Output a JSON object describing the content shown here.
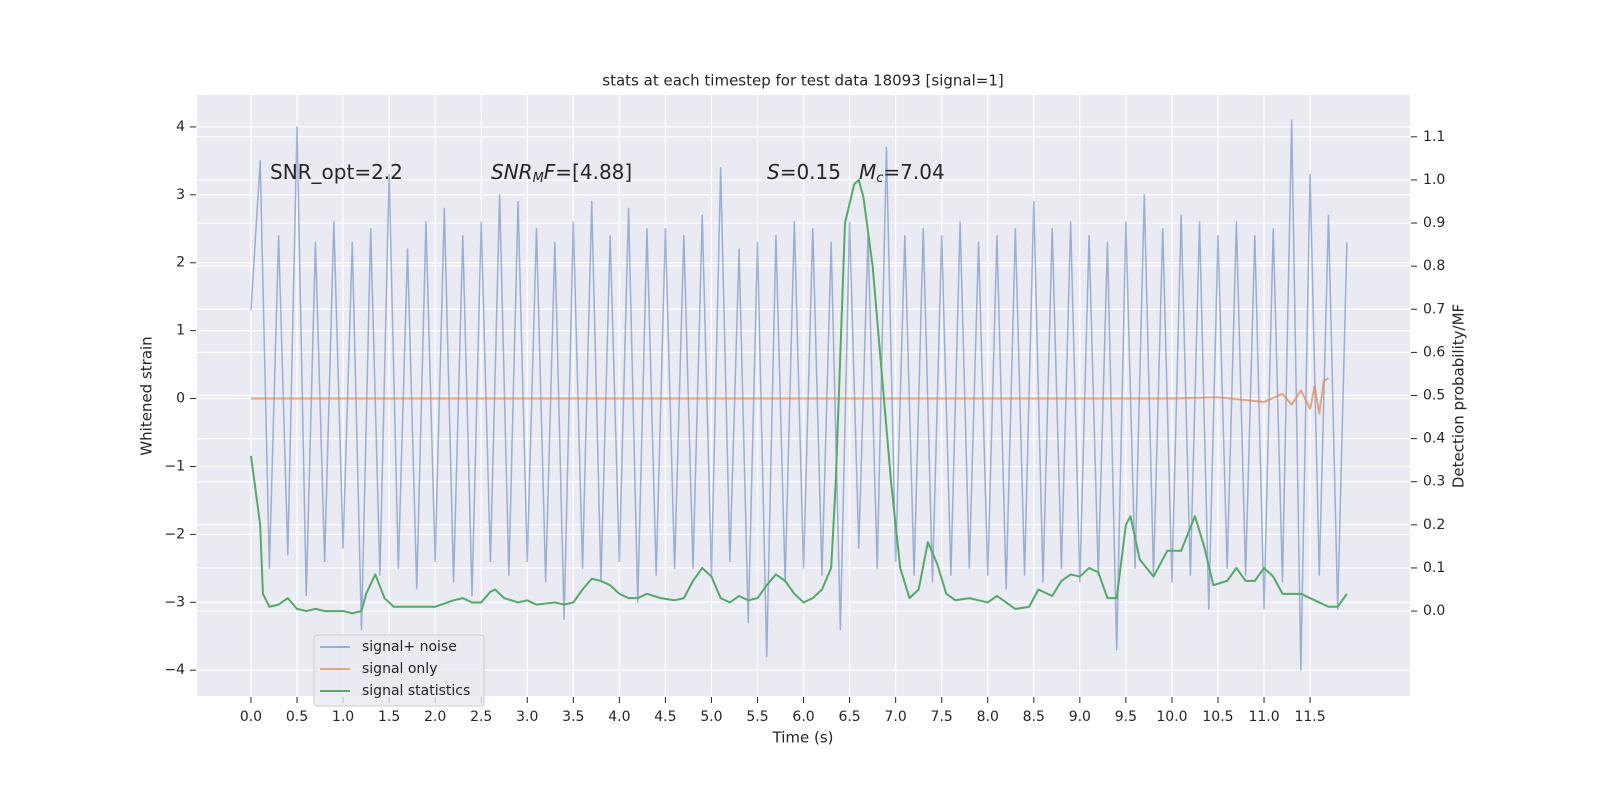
{
  "chart_data": {
    "type": "line",
    "title": "stats at each timestep for test data 18093 [signal=1]",
    "xlabel": "Time (s)",
    "ylabel": "Whitened strain",
    "y2label": "Detection probability/MF",
    "xlim": [
      -0.586,
      12.585
    ],
    "ylim": [
      -4.38,
      4.47
    ],
    "y2lim": [
      -0.197,
      1.197
    ],
    "xticks": [
      {
        "value": 0,
        "label": "0.0"
      },
      0.5,
      {
        "value": 1,
        "label": "1.0"
      },
      1.5,
      {
        "value": 2,
        "label": "2.0"
      },
      2.5,
      {
        "value": 3,
        "label": "3.0"
      },
      3.5,
      {
        "value": 4,
        "label": "4.0"
      },
      4.5,
      {
        "value": 5,
        "label": "5.0"
      },
      5.5,
      {
        "value": 6,
        "label": "6.0"
      },
      6.5,
      {
        "value": 7,
        "label": "7.0"
      },
      7.5,
      {
        "value": 8,
        "label": "8.0"
      },
      8.5,
      {
        "value": 9,
        "label": "9.0"
      },
      9.5,
      {
        "value": 10,
        "label": "10.0"
      },
      10.5,
      {
        "value": 11,
        "label": "11.0"
      },
      11.5
    ],
    "yticks": [
      {
        "value": -4,
        "label": "−4"
      },
      {
        "value": -3,
        "label": "−3"
      },
      {
        "value": -2,
        "label": "−2"
      },
      {
        "value": -1,
        "label": "−1"
      },
      0,
      1,
      2,
      3,
      4
    ],
    "y2ticks": [
      {
        "value": 0,
        "label": "0.0"
      },
      0.1,
      0.2,
      0.3,
      0.4,
      0.5,
      0.6,
      0.7,
      0.8,
      0.9,
      {
        "value": 1,
        "label": "1.0"
      },
      1.1
    ],
    "grid": true,
    "legend": "lower left",
    "annotations": [
      [
        {
          "text": "SNR_opt=2.2",
          "style": "normal"
        }
      ],
      [
        {
          "text": "SNR",
          "style": "italic"
        },
        {
          "text": "M",
          "style": "italic-sub"
        },
        {
          "text": "F",
          "style": "italic"
        },
        {
          "text": "=[4.88]",
          "style": "normal"
        }
      ],
      [
        {
          "text": "S",
          "style": "italic"
        },
        {
          "text": "=0.15",
          "style": "normal"
        }
      ],
      [
        {
          "text": "M",
          "style": "italic"
        },
        {
          "text": "c",
          "style": "italic-sub"
        },
        {
          "text": "=7.04",
          "style": "normal"
        }
      ]
    ],
    "series": [
      {
        "name": "signal+ noise",
        "color": "#4c72b0",
        "opacity": 0.5,
        "x": [
          0,
          0.1,
          0.2,
          0.3,
          0.4,
          0.5,
          0.6,
          0.7,
          0.8,
          0.9,
          1,
          1.1,
          1.2,
          1.3,
          1.4,
          1.5,
          1.6,
          1.7,
          1.8,
          1.9,
          2,
          2.1,
          2.2,
          2.3,
          2.4,
          2.5,
          2.6,
          2.7,
          2.8,
          2.9,
          3,
          3.1,
          3.2,
          3.3,
          3.4,
          3.5,
          3.6,
          3.7,
          3.8,
          3.9,
          4,
          4.1,
          4.2,
          4.3,
          4.4,
          4.5,
          4.6,
          4.7,
          4.8,
          4.9,
          5,
          5.1,
          5.2,
          5.3,
          5.4,
          5.5,
          5.6,
          5.7,
          5.8,
          5.9,
          6,
          6.1,
          6.2,
          6.3,
          6.4,
          6.5,
          6.6,
          6.7,
          6.8,
          6.9,
          7,
          7.1,
          7.2,
          7.3,
          7.4,
          7.5,
          7.6,
          7.7,
          7.8,
          7.9,
          8,
          8.1,
          8.2,
          8.3,
          8.4,
          8.5,
          8.6,
          8.7,
          8.8,
          8.9,
          9,
          9.1,
          9.2,
          9.3,
          9.4,
          9.5,
          9.6,
          9.7,
          9.8,
          9.9,
          10,
          10.1,
          10.2,
          10.3,
          10.4,
          10.5,
          10.6,
          10.7,
          10.8,
          10.9,
          11,
          11.1,
          11.2,
          11.3,
          11.4,
          11.5,
          11.6,
          11.7,
          11.8,
          11.9
        ],
        "values": [
          1.3,
          3.5,
          -2.5,
          2.4,
          -2.3,
          4.0,
          -2.9,
          2.3,
          -2.4,
          2.6,
          -2.2,
          2.3,
          -3.4,
          2.5,
          -2.6,
          3.3,
          -2.5,
          2.2,
          -2.8,
          2.6,
          -2.4,
          2.8,
          -2.7,
          2.4,
          -2.9,
          2.6,
          -2.4,
          3.0,
          -2.6,
          2.9,
          -2.4,
          2.5,
          -2.7,
          2.3,
          -3.25,
          2.6,
          -2.5,
          2.9,
          -2.7,
          2.4,
          -2.4,
          2.8,
          -3.0,
          2.5,
          -2.6,
          2.5,
          -2.5,
          2.4,
          -2.5,
          2.7,
          -2.6,
          3.4,
          -2.4,
          2.2,
          -3.3,
          2.3,
          -3.8,
          2.4,
          -2.7,
          2.6,
          -2.5,
          2.5,
          -2.6,
          2.3,
          -3.4,
          2.6,
          -2.2,
          2.4,
          -2.5,
          3.7,
          -2.4,
          2.4,
          -2.6,
          2.5,
          -2.7,
          2.4,
          -2.6,
          2.6,
          -2.5,
          2.3,
          -2.6,
          2.4,
          -2.8,
          2.5,
          -2.6,
          2.9,
          -2.7,
          2.5,
          -2.5,
          2.6,
          -2.7,
          2.4,
          -2.6,
          2.3,
          -3.7,
          2.6,
          -2.5,
          3.0,
          -2.6,
          2.5,
          -2.7,
          2.7,
          -2.6,
          2.6,
          -3.1,
          2.4,
          -2.5,
          2.6,
          -2.6,
          2.4,
          -3.1,
          2.5,
          -2.7,
          4.1,
          -4.0,
          3.3,
          -2.6,
          2.7,
          -3.1,
          2.3
        ]
      },
      {
        "name": "signal only",
        "color": "#dd8452",
        "opacity": 0.7,
        "x": [
          0,
          1,
          2,
          3,
          4,
          5,
          6,
          7,
          8,
          9,
          10,
          10.5,
          11.0,
          11.2,
          11.3,
          11.4,
          11.5,
          11.55,
          11.6,
          11.65,
          11.7
        ],
        "values": [
          0,
          0,
          0,
          0,
          0,
          0,
          0,
          0,
          0,
          0,
          0,
          0.02,
          -0.05,
          0.07,
          -0.09,
          0.12,
          -0.15,
          0.18,
          -0.22,
          0.26,
          0.3
        ]
      },
      {
        "name": "signal statistics",
        "color": "#55a868",
        "opacity": 1,
        "axis": "y2",
        "x": [
          0,
          0.1,
          0.13,
          0.2,
          0.3,
          0.4,
          0.5,
          0.6,
          0.7,
          0.8,
          1.0,
          1.1,
          1.2,
          1.25,
          1.35,
          1.45,
          1.55,
          1.8,
          2.0,
          2.2,
          2.3,
          2.4,
          2.5,
          2.6,
          2.65,
          2.75,
          2.9,
          3.0,
          3.1,
          3.3,
          3.4,
          3.5,
          3.6,
          3.7,
          3.8,
          3.9,
          4.0,
          4.1,
          4.2,
          4.3,
          4.45,
          4.6,
          4.7,
          4.8,
          4.9,
          5.0,
          5.1,
          5.2,
          5.3,
          5.4,
          5.5,
          5.6,
          5.7,
          5.8,
          5.9,
          6.0,
          6.1,
          6.2,
          6.3,
          6.35,
          6.45,
          6.55,
          6.6,
          6.65,
          6.75,
          6.85,
          6.95,
          7.05,
          7.15,
          7.25,
          7.35,
          7.45,
          7.55,
          7.65,
          7.8,
          7.9,
          8.0,
          8.1,
          8.2,
          8.3,
          8.45,
          8.55,
          8.7,
          8.8,
          8.9,
          9.0,
          9.1,
          9.2,
          9.3,
          9.4,
          9.5,
          9.55,
          9.65,
          9.8,
          9.95,
          10.1,
          10.25,
          10.35,
          10.45,
          10.6,
          10.7,
          10.8,
          10.9,
          11.0,
          11.1,
          11.2,
          11.3,
          11.4,
          11.6,
          11.7,
          11.8,
          11.9
        ],
        "values": [
          0.36,
          0.2,
          0.04,
          0.01,
          0.015,
          0.03,
          0.005,
          0,
          0.005,
          0,
          0,
          -0.005,
          0,
          0.04,
          0.085,
          0.03,
          0.01,
          0.01,
          0.01,
          0.025,
          0.03,
          0.02,
          0.02,
          0.045,
          0.05,
          0.03,
          0.02,
          0.025,
          0.015,
          0.02,
          0.015,
          0.02,
          0.05,
          0.075,
          0.07,
          0.06,
          0.04,
          0.03,
          0.03,
          0.04,
          0.03,
          0.025,
          0.03,
          0.07,
          0.1,
          0.08,
          0.03,
          0.02,
          0.035,
          0.025,
          0.03,
          0.06,
          0.085,
          0.07,
          0.04,
          0.02,
          0.03,
          0.05,
          0.1,
          0.3,
          0.9,
          0.99,
          1.0,
          0.96,
          0.8,
          0.55,
          0.3,
          0.1,
          0.03,
          0.05,
          0.16,
          0.11,
          0.04,
          0.025,
          0.03,
          0.025,
          0.02,
          0.035,
          0.02,
          0.005,
          0.01,
          0.05,
          0.035,
          0.07,
          0.085,
          0.08,
          0.1,
          0.09,
          0.03,
          0.03,
          0.2,
          0.22,
          0.12,
          0.08,
          0.14,
          0.14,
          0.22,
          0.15,
          0.06,
          0.07,
          0.1,
          0.07,
          0.07,
          0.1,
          0.08,
          0.04,
          0.04,
          0.04,
          0.02,
          0.01,
          0.01,
          0.04
        ]
      }
    ]
  }
}
